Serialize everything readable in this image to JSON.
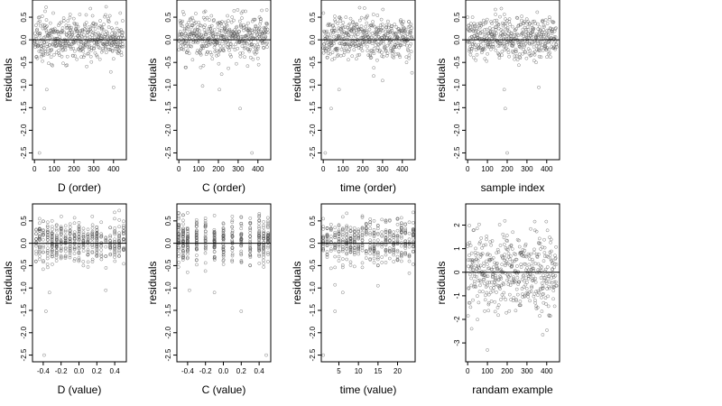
{
  "chart_data": [
    {
      "type": "scatter",
      "xlabel": "D (order)",
      "ylabel": "residuals",
      "xlim": [
        -10,
        465
      ],
      "ylim": [
        -2.65,
        0.88
      ],
      "xticks": [
        0,
        100,
        200,
        300,
        400
      ],
      "yticks": [
        0.5,
        0.0,
        -0.5,
        -1.0,
        -1.5,
        -2.0,
        -2.5
      ],
      "xtick_labels": [
        "0",
        "100",
        "200",
        "300",
        "400"
      ],
      "ytick_labels": [
        "0.5",
        "0.0",
        "-0.5",
        "-1.0",
        "-1.5",
        "-2.0",
        "-2.5"
      ],
      "hline": 0,
      "x_kind": "order",
      "n": 460,
      "seed": 11,
      "spread": 0.28,
      "outliers": [
        [
          50,
          -1.52
        ],
        [
          62,
          -1.1
        ],
        [
          25,
          -2.5
        ],
        [
          400,
          -1.05
        ]
      ],
      "x": [],
      "y": []
    },
    {
      "type": "scatter",
      "xlabel": "C (order)",
      "ylabel": "residuals",
      "xlim": [
        -10,
        465
      ],
      "ylim": [
        -2.65,
        0.88
      ],
      "xticks": [
        0,
        100,
        200,
        300,
        400
      ],
      "yticks": [
        0.5,
        0.0,
        -0.5,
        -1.0,
        -1.5,
        -2.0,
        -2.5
      ],
      "xtick_labels": [
        "0",
        "100",
        "200",
        "300",
        "400"
      ],
      "ytick_labels": [
        "0.5",
        "0.0",
        "-0.5",
        "-1.0",
        "-1.5",
        "-2.0",
        "-2.5"
      ],
      "hline": 0,
      "x_kind": "order",
      "n": 460,
      "seed": 23,
      "spread": 0.28,
      "outliers": [
        [
          310,
          -1.52
        ],
        [
          205,
          -1.1
        ],
        [
          370,
          -2.5
        ],
        [
          120,
          -1.02
        ]
      ],
      "x": [],
      "y": []
    },
    {
      "type": "scatter",
      "xlabel": "time (order)",
      "ylabel": "residuals",
      "xlim": [
        -10,
        465
      ],
      "ylim": [
        -2.65,
        0.88
      ],
      "xticks": [
        0,
        100,
        200,
        300,
        400
      ],
      "yticks": [
        0.5,
        0.0,
        -0.5,
        -1.0,
        -1.5,
        -2.0,
        -2.5
      ],
      "xtick_labels": [
        "0",
        "100",
        "200",
        "300",
        "400"
      ],
      "ytick_labels": [
        "0.5",
        "0.0",
        "-0.5",
        "-1.0",
        "-1.5",
        "-2.0",
        "-2.5"
      ],
      "hline": 0,
      "x_kind": "order",
      "n": 460,
      "seed": 37,
      "spread": 0.28,
      "outliers": [
        [
          40,
          -1.52
        ],
        [
          80,
          -1.1
        ],
        [
          10,
          -2.5
        ],
        [
          300,
          -0.9
        ]
      ],
      "x": [],
      "y": []
    },
    {
      "type": "scatter",
      "xlabel": "sample index",
      "ylabel": "residuals",
      "xlim": [
        -10,
        465
      ],
      "ylim": [
        -2.65,
        0.88
      ],
      "xticks": [
        0,
        100,
        200,
        300,
        400
      ],
      "yticks": [
        0.5,
        0.0,
        -0.5,
        -1.0,
        -1.5,
        -2.0,
        -2.5
      ],
      "xtick_labels": [
        "0",
        "100",
        "200",
        "300",
        "400"
      ],
      "ytick_labels": [
        "0.5",
        "0.0",
        "-0.5",
        "-1.0",
        "-1.5",
        "-2.0",
        "-2.5"
      ],
      "hline": 0,
      "x_kind": "order",
      "n": 460,
      "seed": 41,
      "spread": 0.28,
      "outliers": [
        [
          190,
          -1.52
        ],
        [
          200,
          -2.5
        ],
        [
          185,
          -1.1
        ],
        [
          360,
          -1.05
        ]
      ],
      "x": [],
      "y": []
    },
    {
      "type": "scatter",
      "xlabel": "D (value)",
      "ylabel": "residuals",
      "xlim": [
        -0.52,
        0.53
      ],
      "ylim": [
        -2.65,
        0.88
      ],
      "xticks": [
        -0.4,
        -0.2,
        0.0,
        0.2,
        0.4
      ],
      "yticks": [
        0.5,
        0.0,
        -0.5,
        -1.0,
        -1.5,
        -2.0,
        -2.5
      ],
      "xtick_labels": [
        "-0.4",
        "-0.2",
        "0.0",
        "0.2",
        "0.4"
      ],
      "ytick_labels": [
        "0.5",
        "0.0",
        "-0.5",
        "-1.0",
        "-1.5",
        "-2.0",
        "-2.5"
      ],
      "hline": 0,
      "x_kind": "columns",
      "columns": [
        -0.48,
        -0.44,
        -0.4,
        -0.35,
        -0.3,
        -0.25,
        -0.2,
        -0.15,
        -0.1,
        -0.05,
        0.0,
        0.05,
        0.1,
        0.15,
        0.2,
        0.25,
        0.3,
        0.35,
        0.4,
        0.45,
        0.5
      ],
      "n": 460,
      "seed": 53,
      "spread": 0.28,
      "outliers": [
        [
          -0.37,
          -1.52
        ],
        [
          -0.39,
          -2.5
        ],
        [
          -0.33,
          -1.1
        ],
        [
          0.3,
          -1.05
        ]
      ],
      "x": [],
      "y": []
    },
    {
      "type": "scatter",
      "xlabel": "C (value)",
      "ylabel": "residuals",
      "xlim": [
        -0.52,
        0.53
      ],
      "ylim": [
        -2.65,
        0.88
      ],
      "xticks": [
        -0.4,
        -0.2,
        0.0,
        0.2,
        0.4
      ],
      "yticks": [
        0.5,
        0.0,
        -0.5,
        -1.0,
        -1.5,
        -2.0,
        -2.5
      ],
      "xtick_labels": [
        "-0.4",
        "-0.2",
        "0.0",
        "0.2",
        "0.4"
      ],
      "ytick_labels": [
        "0.5",
        "0.0",
        "-0.5",
        "-1.0",
        "-1.5",
        "-2.0",
        "-2.5"
      ],
      "hline": 0,
      "x_kind": "columns",
      "columns": [
        -0.5,
        -0.45,
        -0.4,
        -0.3,
        -0.2,
        -0.1,
        0.0,
        0.1,
        0.2,
        0.3,
        0.4,
        0.45,
        0.5
      ],
      "n": 460,
      "seed": 67,
      "spread": 0.28,
      "outliers": [
        [
          0.2,
          -1.52
        ],
        [
          0.48,
          -2.5
        ],
        [
          -0.1,
          -1.1
        ],
        [
          -0.38,
          -1.05
        ]
      ],
      "x": [],
      "y": []
    },
    {
      "type": "scatter",
      "xlabel": "time (value)",
      "ylabel": "residuals",
      "xlim": [
        0.5,
        24.5
      ],
      "ylim": [
        -2.65,
        0.88
      ],
      "xticks": [
        5,
        10,
        15,
        20
      ],
      "yticks": [
        0.5,
        0.0,
        -0.5,
        -1.0,
        -1.5,
        -2.0,
        -2.5
      ],
      "xtick_labels": [
        "5",
        "10",
        "15",
        "20"
      ],
      "ytick_labels": [
        "0.5",
        "0.0",
        "-0.5",
        "-1.0",
        "-1.5",
        "-2.0",
        "-2.5"
      ],
      "hline": 0,
      "x_kind": "columns",
      "columns": [
        1,
        2,
        3,
        4,
        5,
        6,
        7,
        8,
        9,
        10,
        11,
        12,
        13,
        14,
        15,
        16,
        17,
        18,
        19,
        20,
        21,
        22,
        23,
        24
      ],
      "n": 460,
      "seed": 79,
      "spread": 0.28,
      "outliers": [
        [
          4,
          -1.52
        ],
        [
          1,
          -2.5
        ],
        [
          6,
          -1.1
        ],
        [
          15,
          -0.95
        ]
      ],
      "x": [],
      "y": []
    },
    {
      "type": "scatter",
      "xlabel": "randam example",
      "ylabel": "residuals",
      "xlim": [
        -10,
        465
      ],
      "ylim": [
        -3.8,
        2.9
      ],
      "xticks": [
        0,
        100,
        200,
        300,
        400
      ],
      "yticks": [
        2,
        1,
        0,
        -1,
        -2,
        -3
      ],
      "xtick_labels": [
        "0",
        "100",
        "200",
        "300",
        "400"
      ],
      "ytick_labels": [
        "2",
        "1",
        "0",
        "-1",
        "-2",
        "-3"
      ],
      "hline": 0,
      "x_kind": "order",
      "n": 460,
      "seed": 97,
      "spread": 1.0,
      "outliers": [
        [
          100,
          -3.3
        ],
        [
          20,
          -2.4
        ],
        [
          380,
          -2.65
        ]
      ],
      "x": [],
      "y": []
    }
  ]
}
